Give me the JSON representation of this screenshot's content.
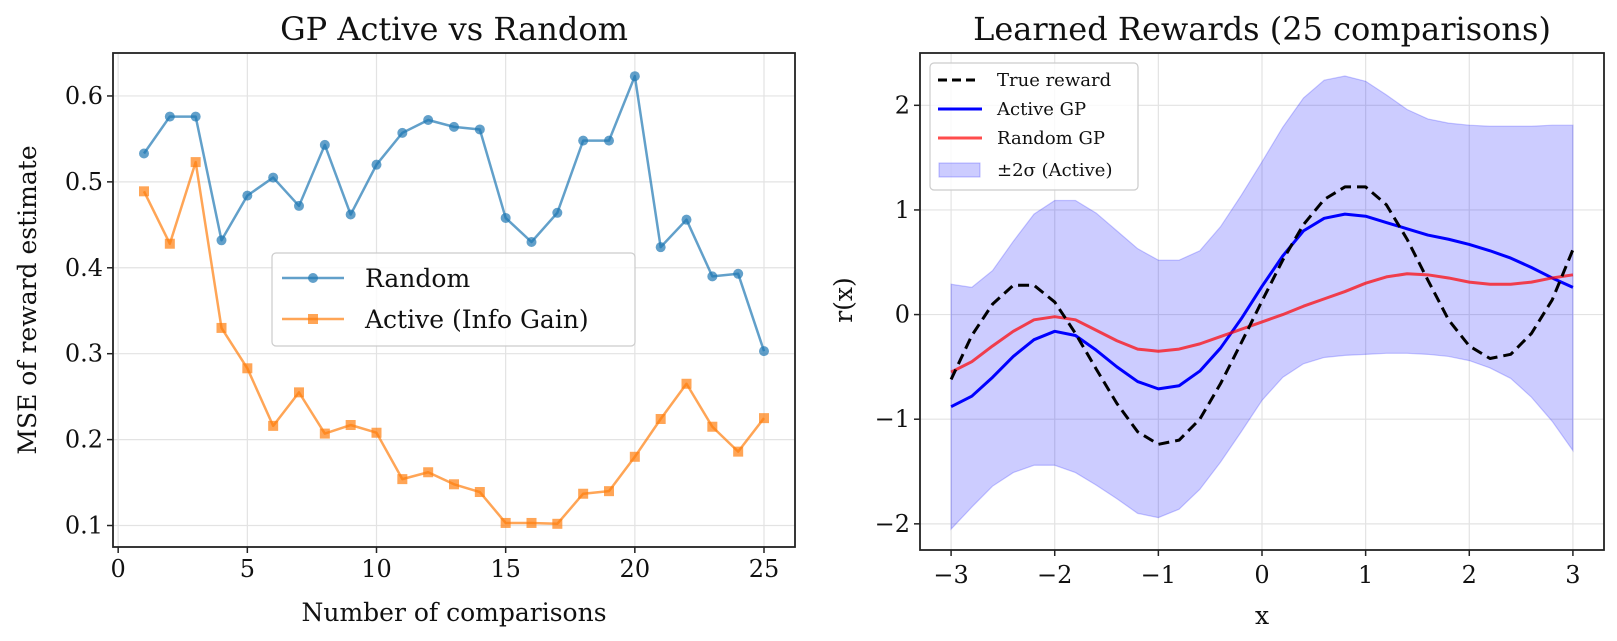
{
  "chart_data": [
    {
      "type": "line",
      "title": "GP Active vs Random",
      "xlabel": "Number of comparisons",
      "ylabel": "MSE of reward estimate",
      "xlim": [
        -0.2,
        26.2
      ],
      "ylim": [
        0.075,
        0.65
      ],
      "xticks": [
        0,
        5,
        10,
        15,
        20,
        25
      ],
      "yticks": [
        0.1,
        0.2,
        0.3,
        0.4,
        0.5,
        0.6
      ],
      "grid": true,
      "legend_position": "center-right",
      "x": [
        1,
        2,
        3,
        4,
        5,
        6,
        7,
        8,
        9,
        10,
        11,
        12,
        13,
        14,
        15,
        16,
        17,
        18,
        19,
        20,
        21,
        22,
        23,
        24,
        25
      ],
      "series": [
        {
          "name": "Random",
          "color": "#1f77b4",
          "marker": "circle",
          "values": [
            0.533,
            0.576,
            0.576,
            0.432,
            0.484,
            0.505,
            0.472,
            0.543,
            0.462,
            0.52,
            0.557,
            0.572,
            0.564,
            0.561,
            0.458,
            0.43,
            0.464,
            0.548,
            0.548,
            0.623,
            0.424,
            0.456,
            0.39,
            0.393,
            0.303
          ]
        },
        {
          "name": "Active (Info Gain)",
          "color": "#ff7f0e",
          "marker": "square",
          "values": [
            0.489,
            0.428,
            0.523,
            0.33,
            0.283,
            0.216,
            0.255,
            0.207,
            0.217,
            0.208,
            0.154,
            0.162,
            0.148,
            0.139,
            0.103,
            0.103,
            0.102,
            0.137,
            0.14,
            0.18,
            0.224,
            0.265,
            0.215,
            0.186,
            0.225
          ]
        }
      ]
    },
    {
      "type": "line",
      "title": "Learned Rewards (25 comparisons)",
      "xlabel": "x",
      "ylabel": "r(x)",
      "xlim": [
        -3.3,
        3.3
      ],
      "ylim": [
        -2.25,
        2.5
      ],
      "xticks": [
        -3,
        -2,
        -1,
        0,
        1,
        2,
        3
      ],
      "xtick_labels": [
        "−3",
        "−2",
        "−1",
        "0",
        "1",
        "2",
        "3"
      ],
      "yticks": [
        -2,
        -1,
        0,
        1,
        2
      ],
      "ytick_labels": [
        "−2",
        "−1",
        "0",
        "1",
        "2"
      ],
      "grid": true,
      "legend_position": "top-left",
      "x": [
        -3.0,
        -2.8,
        -2.6,
        -2.4,
        -2.2,
        -2.0,
        -1.8,
        -1.6,
        -1.4,
        -1.2,
        -1.0,
        -0.8,
        -0.6,
        -0.4,
        -0.2,
        0.0,
        0.2,
        0.4,
        0.6,
        0.8,
        1.0,
        1.2,
        1.4,
        1.6,
        1.8,
        2.0,
        2.2,
        2.4,
        2.6,
        2.8,
        3.0
      ],
      "series": [
        {
          "name": "True reward",
          "color": "#000000",
          "style": "dashed",
          "values": [
            -0.62,
            -0.2,
            0.1,
            0.28,
            0.28,
            0.12,
            -0.18,
            -0.52,
            -0.85,
            -1.12,
            -1.24,
            -1.2,
            -1.0,
            -0.66,
            -0.27,
            0.13,
            0.52,
            0.86,
            1.1,
            1.22,
            1.22,
            1.05,
            0.72,
            0.33,
            -0.05,
            -0.3,
            -0.42,
            -0.38,
            -0.18,
            0.14,
            0.62
          ]
        },
        {
          "name": "Active GP",
          "color": "#0000ff",
          "style": "solid",
          "values": [
            -0.88,
            -0.78,
            -0.6,
            -0.4,
            -0.24,
            -0.16,
            -0.2,
            -0.34,
            -0.5,
            -0.64,
            -0.71,
            -0.68,
            -0.54,
            -0.32,
            -0.04,
            0.27,
            0.56,
            0.8,
            0.92,
            0.96,
            0.94,
            0.88,
            0.82,
            0.76,
            0.72,
            0.67,
            0.61,
            0.54,
            0.45,
            0.35,
            0.26
          ]
        },
        {
          "name": "Random GP",
          "color": "#ff0000",
          "style": "solid",
          "values": [
            -0.55,
            -0.45,
            -0.3,
            -0.16,
            -0.05,
            -0.02,
            -0.05,
            -0.15,
            -0.25,
            -0.33,
            -0.35,
            -0.33,
            -0.28,
            -0.21,
            -0.14,
            -0.07,
            0.0,
            0.08,
            0.15,
            0.22,
            0.3,
            0.36,
            0.39,
            0.38,
            0.35,
            0.31,
            0.29,
            0.29,
            0.31,
            0.35,
            0.38
          ]
        }
      ],
      "band": {
        "name": "±2σ (Active)",
        "color": "#0000ff",
        "upper": [
          0.29,
          0.26,
          0.42,
          0.7,
          0.96,
          1.09,
          1.09,
          0.97,
          0.8,
          0.63,
          0.52,
          0.52,
          0.61,
          0.84,
          1.14,
          1.46,
          1.79,
          2.07,
          2.24,
          2.28,
          2.23,
          2.1,
          1.96,
          1.87,
          1.83,
          1.81,
          1.8,
          1.8,
          1.8,
          1.81,
          1.81
        ],
        "lower": [
          -2.05,
          -1.84,
          -1.64,
          -1.51,
          -1.44,
          -1.44,
          -1.51,
          -1.63,
          -1.76,
          -1.9,
          -1.94,
          -1.86,
          -1.67,
          -1.41,
          -1.12,
          -0.82,
          -0.6,
          -0.47,
          -0.41,
          -0.39,
          -0.38,
          -0.37,
          -0.37,
          -0.38,
          -0.4,
          -0.44,
          -0.51,
          -0.61,
          -0.79,
          -1.02,
          -1.3
        ]
      }
    }
  ]
}
